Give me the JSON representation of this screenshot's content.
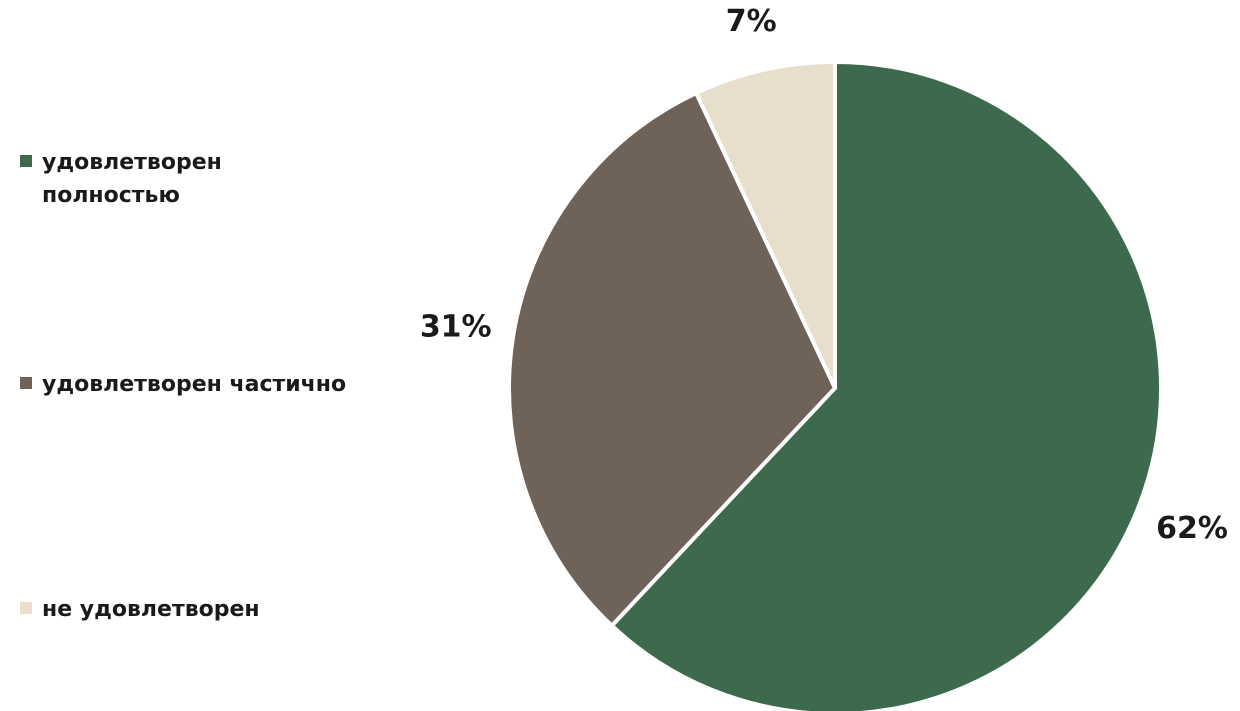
{
  "chart_data": {
    "type": "pie",
    "title": "",
    "categories": [
      "удовлетворен полностью",
      "удовлетворен частично",
      "не удовлетворен"
    ],
    "values": [
      62,
      31,
      7
    ],
    "value_labels": [
      "62%",
      "31%",
      "7%"
    ],
    "colors": [
      "#3d6a4d",
      "#6f6359",
      "#e7dfcc"
    ],
    "legend_position": "left"
  }
}
